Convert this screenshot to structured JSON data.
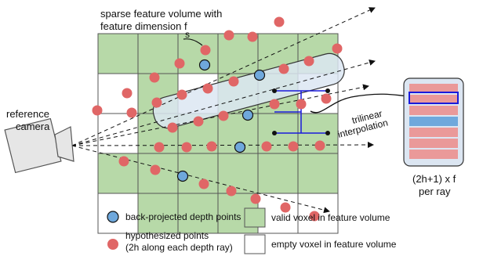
{
  "title": {
    "line1": "sparse feature volume with",
    "line2": "feature dimension f"
  },
  "labels": {
    "s": "s",
    "camera_line1": "reference",
    "camera_line2": "camera",
    "interp_line1": "trilinear",
    "interp_line2": "interpolation",
    "feat_line1": "(2h+1) x f",
    "feat_line2": "per ray"
  },
  "legend": {
    "back_projected": "back-projected depth points",
    "hypo_line1": "hypothesized points",
    "hypo_line2": "(2h along each depth ray)",
    "valid_voxel": "valid voxel in feature volume",
    "empty_voxel": "empty voxel in feature volume"
  },
  "colors": {
    "valid_voxel": "#b7d9a8",
    "grid_line": "#555555",
    "red_point": "#e06666",
    "blue_point": "#6fa8dc",
    "tube": "#dce6f2",
    "feature_pink": "#ea9999",
    "feature_blue": "#6fa8dc",
    "feature_bg": "#dce6f2",
    "highlight": "#1a1adb"
  },
  "icons": {
    "camera": "camera-icon",
    "arrow": "arrow-icon"
  }
}
